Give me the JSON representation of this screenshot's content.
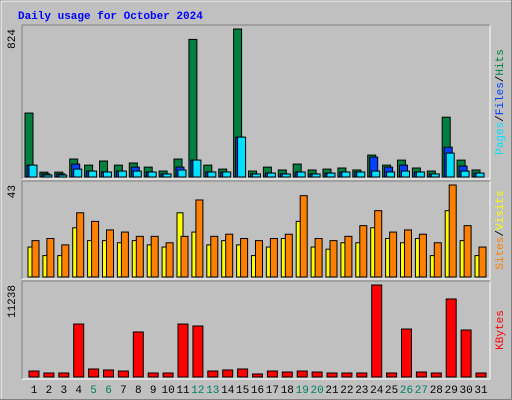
{
  "title": "Daily usage for October 2024",
  "legend_separator": "/",
  "chart_data": [
    {
      "type": "bar",
      "ylim": [
        0,
        824
      ],
      "yticks": [
        824
      ],
      "series": [
        {
          "name": "Hits",
          "color": "#008040",
          "values": [
            356,
            27,
            27,
            100,
            66,
            89,
            66,
            78,
            55,
            33,
            100,
            766,
            66,
            44,
            824,
            33,
            55,
            39,
            72,
            39,
            44,
            50,
            39,
            122,
            66,
            94,
            50,
            33,
            333,
            94,
            39
          ]
        },
        {
          "name": "Files",
          "color": "#0040ff",
          "values": [
            66,
            17,
            17,
            72,
            33,
            28,
            33,
            55,
            28,
            17,
            55,
            94,
            28,
            28,
            222,
            17,
            22,
            17,
            28,
            17,
            22,
            28,
            28,
            111,
            55,
            66,
            28,
            17,
            166,
            61,
            22
          ]
        },
        {
          "name": "Pages",
          "color": "#00e0ff",
          "values": [
            66,
            11,
            11,
            44,
            33,
            28,
            33,
            33,
            28,
            17,
            39,
            94,
            28,
            28,
            222,
            17,
            22,
            17,
            28,
            17,
            22,
            28,
            28,
            33,
            28,
            33,
            28,
            17,
            133,
            33,
            22
          ]
        }
      ]
    },
    {
      "type": "bar",
      "ylim": [
        0,
        43
      ],
      "yticks": [
        43
      ],
      "series": [
        {
          "name": "Visits",
          "color": "#ffff00",
          "values": [
            14,
            10,
            10,
            23,
            17,
            17,
            16,
            17,
            15,
            14,
            30,
            21,
            15,
            17,
            15,
            10,
            14,
            18,
            26,
            14,
            13,
            16,
            16,
            23,
            18,
            16,
            18,
            10,
            31,
            17,
            10
          ]
        },
        {
          "name": "Sites",
          "color": "#ff8000",
          "values": [
            17,
            18,
            15,
            30,
            26,
            22,
            21,
            19,
            19,
            16,
            19,
            36,
            19,
            20,
            18,
            17,
            18,
            20,
            38,
            18,
            17,
            19,
            24,
            31,
            21,
            22,
            20,
            16,
            43,
            24,
            14
          ]
        }
      ]
    },
    {
      "type": "bar",
      "ylim": [
        0,
        11238
      ],
      "yticks": [
        11238
      ],
      "categories": [
        "1",
        "2",
        "3",
        "4",
        "5",
        "6",
        "7",
        "8",
        "9",
        "10",
        "11",
        "12",
        "13",
        "14",
        "15",
        "16",
        "17",
        "18",
        "19",
        "20",
        "21",
        "22",
        "23",
        "24",
        "25",
        "26",
        "27",
        "28",
        "29",
        "30",
        "31"
      ],
      "label_colors": [
        "#000000",
        "#000000",
        "#000000",
        "#000000",
        "#00805c",
        "#00805c",
        "#000000",
        "#000000",
        "#000000",
        "#000000",
        "#000000",
        "#00805c",
        "#00805c",
        "#000000",
        "#000000",
        "#000000",
        "#000000",
        "#000000",
        "#00805c",
        "#00805c",
        "#000000",
        "#000000",
        "#000000",
        "#000000",
        "#000000",
        "#00805c",
        "#00805c",
        "#000000",
        "#000000",
        "#000000",
        "#000000"
      ],
      "series": [
        {
          "name": "KBytes",
          "color": "#ff0000",
          "values": [
            730,
            490,
            490,
            6470,
            980,
            855,
            730,
            5500,
            490,
            490,
            6470,
            6230,
            730,
            855,
            980,
            370,
            730,
            610,
            730,
            610,
            490,
            490,
            490,
            11238,
            490,
            5860,
            610,
            490,
            9530,
            5740,
            490
          ]
        }
      ]
    }
  ]
}
